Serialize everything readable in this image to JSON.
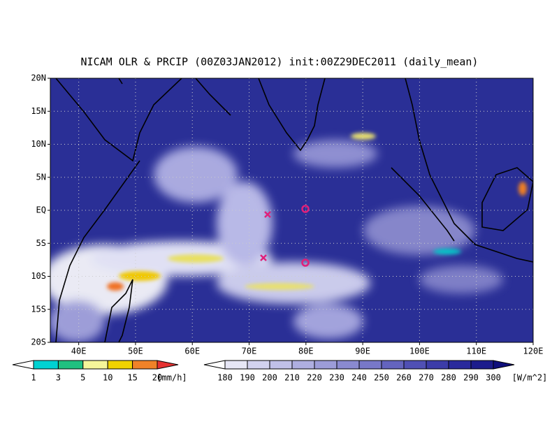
{
  "title": "NICAM OLR & PRCIP (00Z03JAN2012) init:00Z29DEC2011 (daily_mean)",
  "latitude_labels": [
    "20N",
    "15N",
    "10N",
    "5N",
    "EQ",
    "5S",
    "10S",
    "15S",
    "20S"
  ],
  "longitude_labels": [
    "40E",
    "50E",
    "60E",
    "70E",
    "80E",
    "90E",
    "100E",
    "110E",
    "120E"
  ],
  "precip_colorbar": {
    "labels": [
      1,
      3,
      5,
      10,
      15,
      20
    ],
    "unit": "[mm/h]"
  },
  "olr_colorbar": {
    "labels": [
      180,
      190,
      200,
      210,
      220,
      230,
      240,
      250,
      260,
      270,
      280,
      290,
      300
    ],
    "unit": "[W/m^2]"
  }
}
